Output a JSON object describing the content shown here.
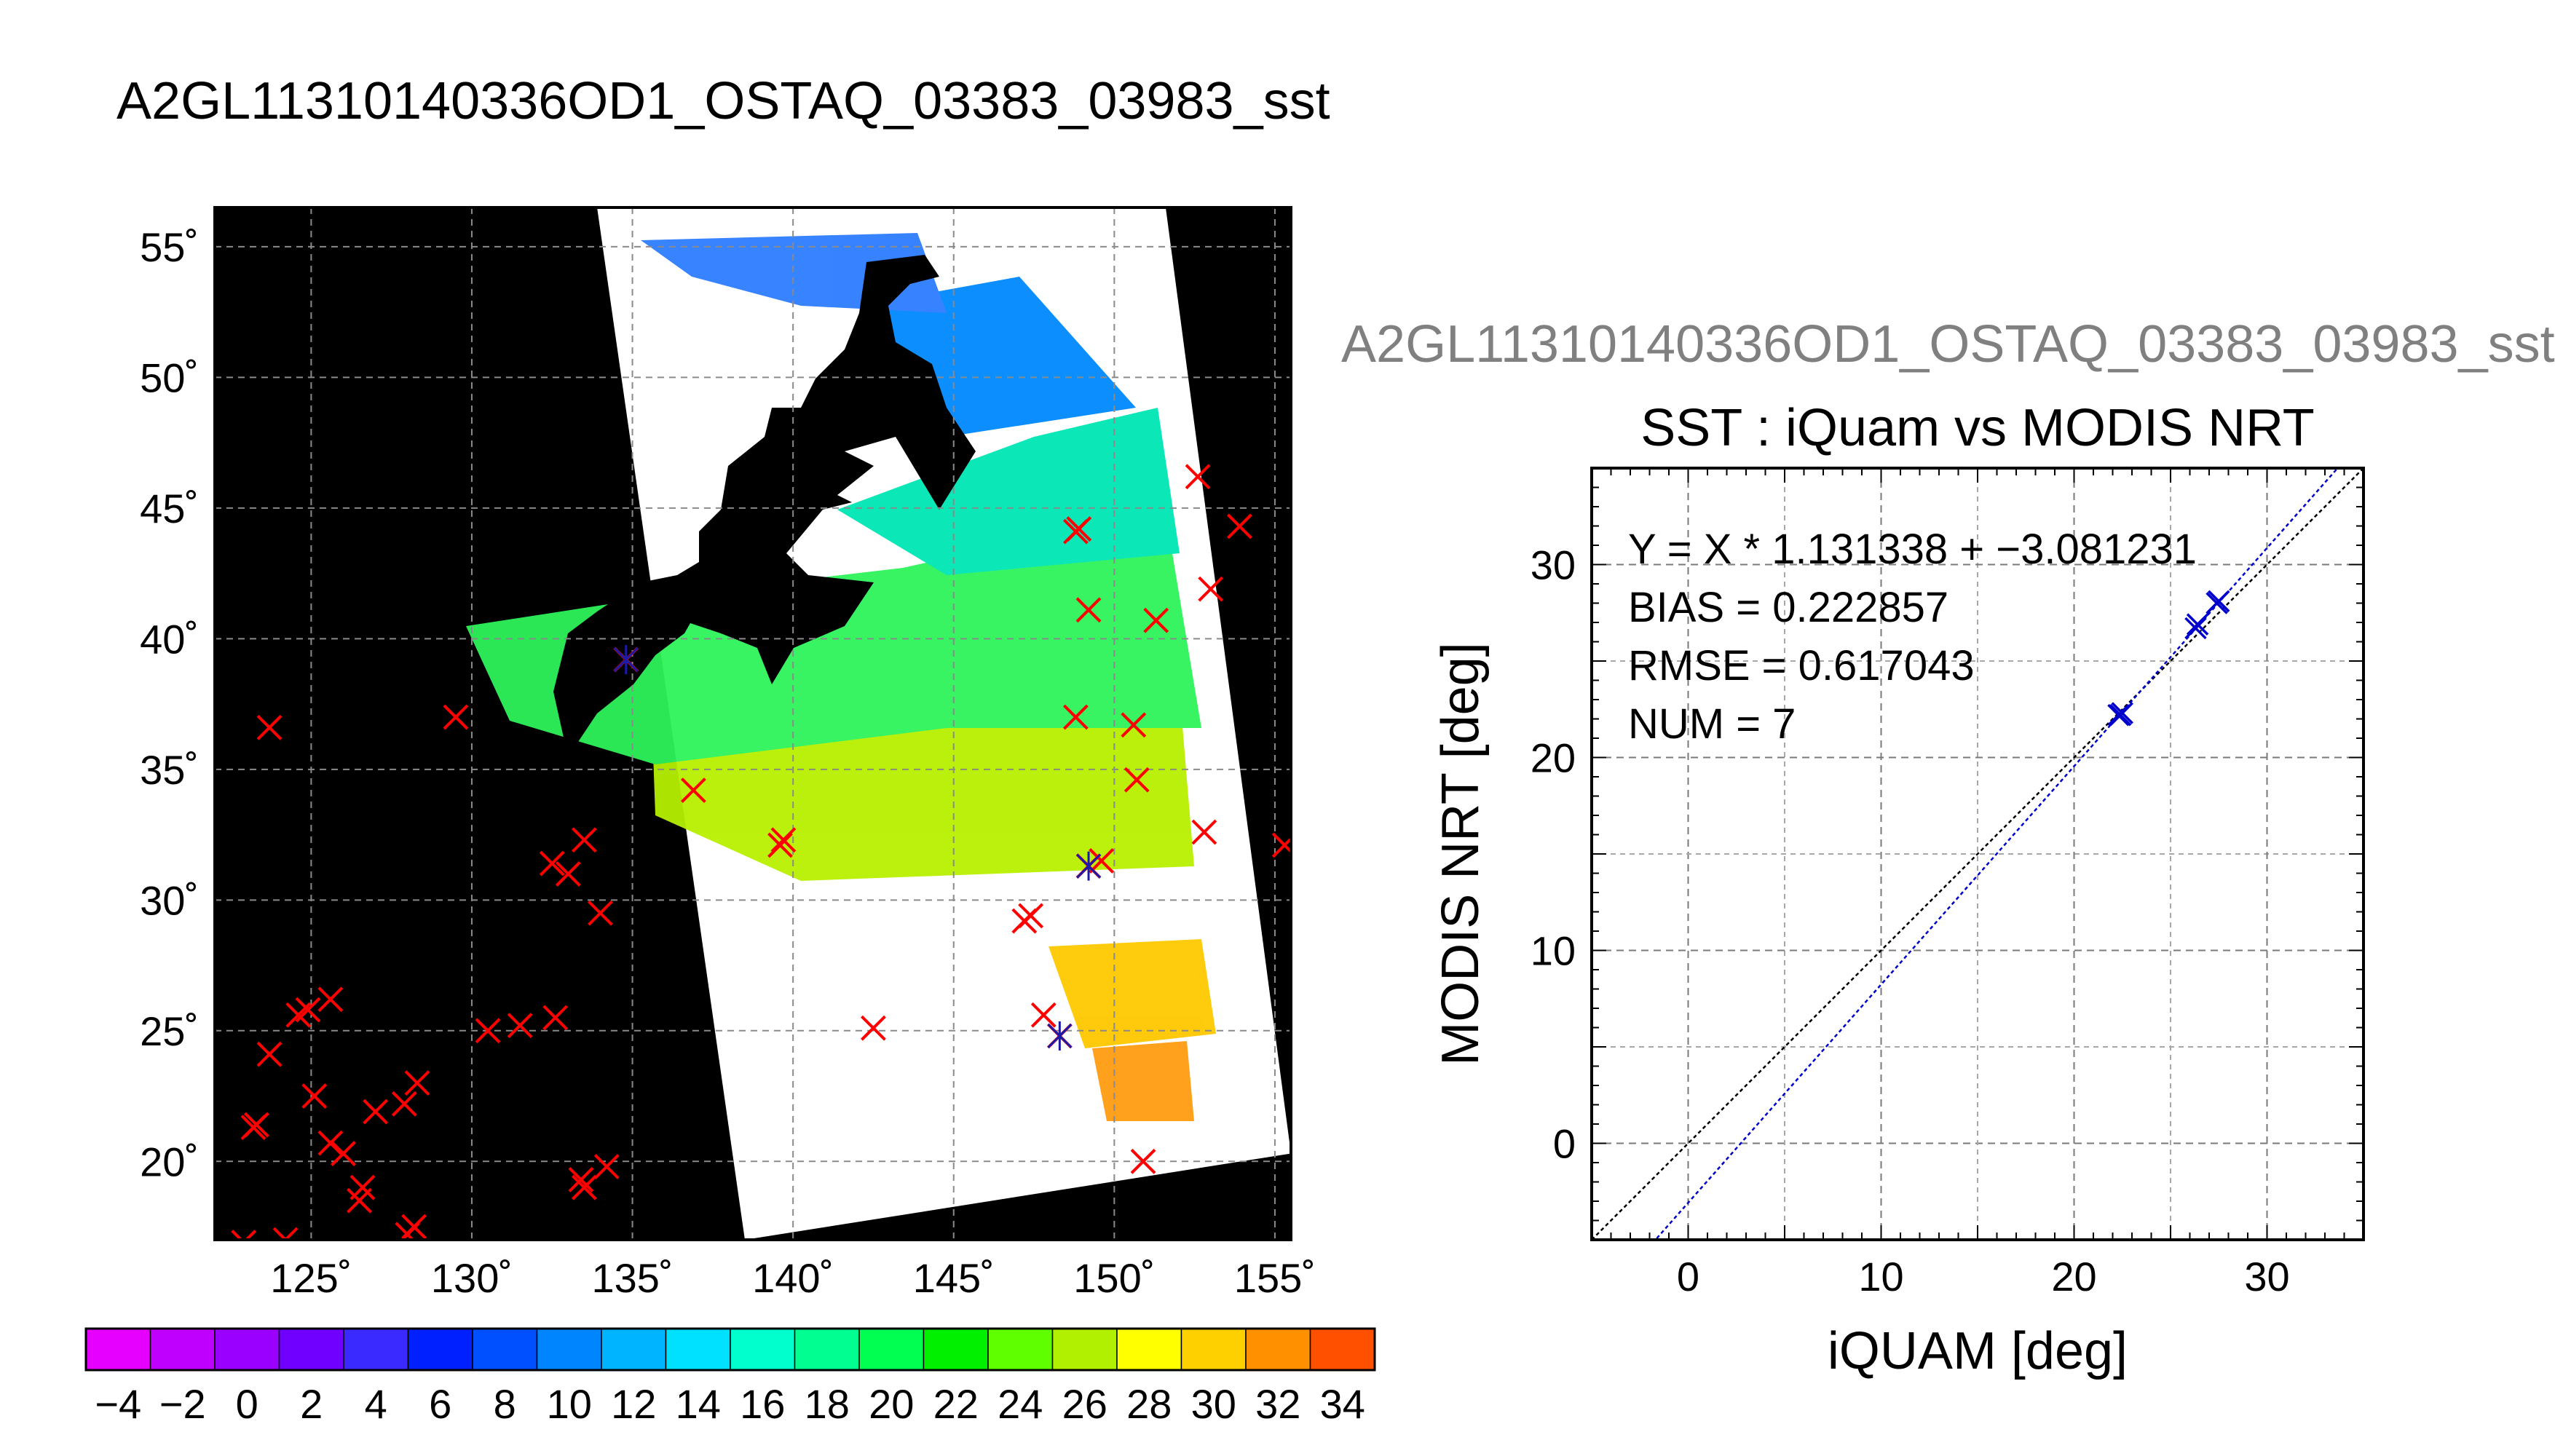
{
  "title": "A2GL11310140336OD1_OSTAQ_03383_03983_sst",
  "subtitle": "A2GL11310140336OD1_OSTAQ_03383_03983_sst",
  "chart_data": [
    {
      "type": "map",
      "lon_range": [
        122.0,
        155.5
      ],
      "lat_range": [
        17.0,
        56.5
      ],
      "lon_ticks": [
        125,
        130,
        135,
        140,
        145,
        150,
        155
      ],
      "lon_tick_labels": [
        "125˚",
        "130˚",
        "135˚",
        "140˚",
        "145˚",
        "150˚",
        "155˚"
      ],
      "lat_ticks": [
        20,
        25,
        30,
        35,
        40,
        45,
        50,
        55
      ],
      "lat_tick_labels": [
        "20˚",
        "25˚",
        "30˚",
        "35˚",
        "40˚",
        "45˚",
        "50˚",
        "55˚"
      ],
      "grid": true,
      "background_color": "#000000",
      "swath_color": "#ffffff",
      "swath_corners": [
        [
          133.9,
          56.5
        ],
        [
          151.6,
          56.5
        ],
        [
          155.5,
          20.3
        ],
        [
          138.5,
          17.0
        ]
      ],
      "matchup_color": "#ff0000",
      "matchups": [
        [
          123.7,
          36.6
        ],
        [
          123.3,
          21.4
        ],
        [
          123.2,
          21.3
        ],
        [
          123.7,
          24.1
        ],
        [
          124.6,
          25.6
        ],
        [
          124.9,
          25.8
        ],
        [
          125.1,
          22.5
        ],
        [
          125.6,
          26.2
        ],
        [
          125.6,
          20.7
        ],
        [
          126.0,
          20.3
        ],
        [
          126.5,
          18.5
        ],
        [
          126.6,
          19.0
        ],
        [
          127.0,
          21.9
        ],
        [
          127.9,
          22.2
        ],
        [
          128.3,
          23.0
        ],
        [
          128.2,
          17.5
        ],
        [
          128.0,
          17.2
        ],
        [
          129.5,
          37.0
        ],
        [
          130.5,
          25.0
        ],
        [
          131.5,
          25.2
        ],
        [
          132.6,
          25.5
        ],
        [
          132.5,
          31.4
        ],
        [
          133.0,
          31.0
        ],
        [
          133.5,
          32.3
        ],
        [
          133.5,
          19.0
        ],
        [
          133.4,
          19.3
        ],
        [
          134.2,
          19.8
        ],
        [
          134.0,
          29.5
        ],
        [
          134.8,
          39.2
        ],
        [
          136.9,
          34.2
        ],
        [
          139.6,
          32.1
        ],
        [
          139.7,
          32.3
        ],
        [
          142.5,
          25.1
        ],
        [
          147.2,
          29.2
        ],
        [
          147.4,
          29.4
        ],
        [
          147.8,
          25.6
        ],
        [
          148.3,
          24.8
        ],
        [
          148.8,
          44.1
        ],
        [
          148.9,
          44.2
        ],
        [
          148.8,
          37.0
        ],
        [
          149.2,
          41.1
        ],
        [
          149.2,
          31.3
        ],
        [
          149.6,
          31.5
        ],
        [
          150.6,
          36.7
        ],
        [
          150.7,
          34.6
        ],
        [
          150.9,
          20.0
        ],
        [
          151.3,
          40.7
        ],
        [
          152.6,
          46.2
        ],
        [
          153.0,
          41.9
        ],
        [
          152.8,
          32.6
        ],
        [
          153.9,
          44.3
        ],
        [
          155.3,
          32.1
        ],
        [
          122.9,
          16.9
        ],
        [
          124.2,
          17.0
        ]
      ],
      "blue_markers": [
        [
          134.8,
          39.2
        ],
        [
          149.2,
          31.3
        ],
        [
          148.3,
          24.8
        ]
      ]
    },
    {
      "type": "colorbar",
      "range": [
        -5,
        35
      ],
      "step": 2,
      "tick_labels": [
        "-4",
        "-2",
        "0",
        "2",
        "4",
        "6",
        "8",
        "10",
        "12",
        "14",
        "16",
        "18",
        "20",
        "22",
        "24",
        "26",
        "28",
        "30",
        "32",
        "34"
      ],
      "colors": [
        "#e600ff",
        "#c000ff",
        "#9a00ff",
        "#7000ff",
        "#3a2aff",
        "#0020ff",
        "#0050ff",
        "#0085ff",
        "#00b4ff",
        "#00e0ff",
        "#00ffcc",
        "#00ff90",
        "#00ff50",
        "#00f000",
        "#60ff00",
        "#b0f000",
        "#ffff00",
        "#ffd000",
        "#ff9000",
        "#ff5000",
        "#ff1000"
      ]
    },
    {
      "type": "scatter",
      "title": "SST : iQuam vs MODIS NRT",
      "xlabel": "iQUAM [deg]",
      "ylabel": "MODIS NRT [deg]",
      "xlim": [
        -5,
        35
      ],
      "ylim": [
        -5,
        35
      ],
      "xticks": [
        0,
        10,
        20,
        30
      ],
      "yticks": [
        0,
        10,
        20,
        30
      ],
      "grid": true,
      "annotations": [
        "Y = X * 1.131338 + −3.081231",
        "BIAS = 0.222857",
        "RMSE = 0.617043",
        "NUM = 7"
      ],
      "fit": {
        "slope": 1.131338,
        "intercept": -3.081231
      },
      "points": [
        [
          22.4,
          22.2
        ],
        [
          22.3,
          22.2
        ],
        [
          22.5,
          22.3
        ],
        [
          26.3,
          26.7
        ],
        [
          26.4,
          26.9
        ],
        [
          27.4,
          28.0
        ],
        [
          27.5,
          28.1
        ]
      ],
      "point_color": "#0000cc",
      "fit_color": "#0000cc",
      "identity_color": "#000000"
    }
  ]
}
